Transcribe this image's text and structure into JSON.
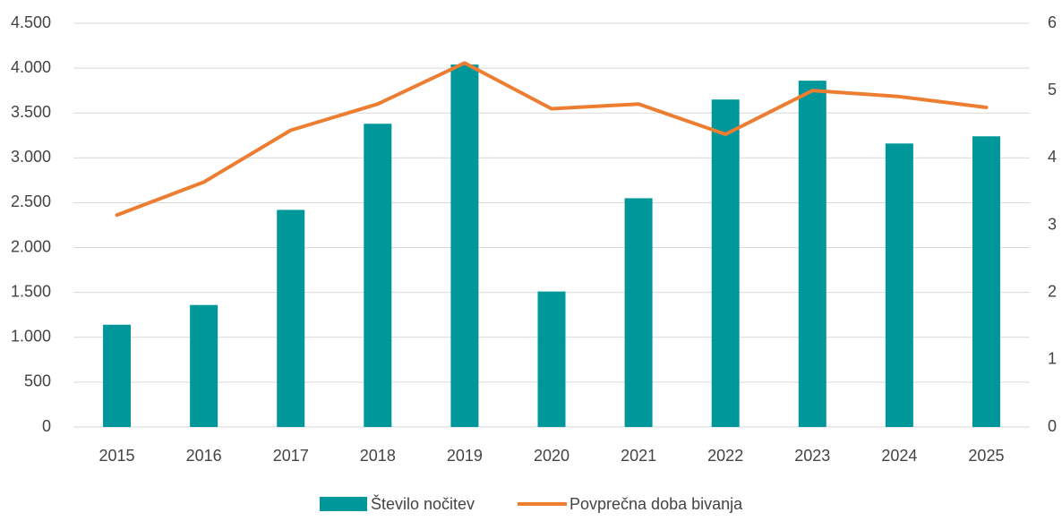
{
  "chart_data": {
    "type": "bar",
    "categories": [
      "2015",
      "2016",
      "2017",
      "2018",
      "2019",
      "2020",
      "2021",
      "2022",
      "2023",
      "2024",
      "2025"
    ],
    "series": [
      {
        "name": "Število nočitev",
        "type": "bar",
        "color": "#00979b",
        "values": [
          1140,
          1360,
          2420,
          3380,
          4040,
          1510,
          2550,
          3650,
          3860,
          3160,
          3240
        ]
      },
      {
        "name": "Povprečna doba bivanja",
        "type": "line",
        "axis": "y2",
        "color": "#ed7d31",
        "values": [
          3.15,
          3.64,
          4.41,
          4.8,
          5.41,
          4.73,
          4.8,
          4.35,
          5.0,
          4.91,
          4.75
        ]
      }
    ],
    "ylim": [
      0,
      4500
    ],
    "yticks": [
      0,
      500,
      {
        "value": 1000,
        "label": "1.000"
      },
      {
        "value": 1500,
        "label": "1.500"
      },
      {
        "value": 2000,
        "label": "2.000"
      },
      {
        "value": 2500,
        "label": "2.500"
      },
      {
        "value": 3000,
        "label": "3.000"
      },
      {
        "value": 3500,
        "label": "3.500"
      },
      {
        "value": 4000,
        "label": "4.000"
      },
      {
        "value": 4500,
        "label": "4.500"
      }
    ],
    "y2lim": [
      0,
      6
    ],
    "y2ticks": [
      0,
      1,
      2,
      3,
      4,
      5,
      6
    ],
    "grid": true,
    "legend": "bottom"
  }
}
